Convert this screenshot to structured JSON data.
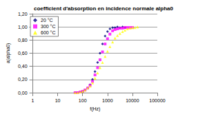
{
  "chart_data": {
    "type": "scatter",
    "title": "coefficient d'absorption en incidence normale alpha0",
    "x_label": "f(Hz)",
    "y_label": "a(alpha0)",
    "x": [
      50,
      63,
      80,
      100,
      125,
      160,
      200,
      250,
      315,
      400,
      500,
      630,
      800,
      1000,
      1250,
      1600,
      2000,
      2500,
      3150,
      4000,
      5000,
      6300,
      8000,
      10000,
      12500,
      16000
    ],
    "series": [
      {
        "name": "20 °C",
        "color": "#000080",
        "marker": "diamond",
        "values": [
          0.0,
          0.0,
          0.01,
          0.02,
          0.04,
          0.07,
          0.12,
          0.2,
          0.32,
          0.46,
          0.6,
          0.74,
          0.86,
          0.93,
          0.97,
          0.99,
          0.99,
          1.0,
          0.99,
          1.0,
          0.99,
          null,
          null,
          null,
          null,
          null
        ]
      },
      {
        "name": "300 °C",
        "color": "#ff00ff",
        "marker": "square",
        "values": [
          0.0,
          0.0,
          0.01,
          0.02,
          0.04,
          0.07,
          0.11,
          0.17,
          0.27,
          0.38,
          0.5,
          0.62,
          0.74,
          0.82,
          0.89,
          0.94,
          0.96,
          0.97,
          0.98,
          0.98,
          0.99,
          0.99,
          0.99,
          0.99,
          null,
          null
        ]
      },
      {
        "name": "600 °C",
        "color": "#ffff00",
        "marker": "triangle",
        "values": [
          0.0,
          0.0,
          0.01,
          0.02,
          0.04,
          0.07,
          0.1,
          0.15,
          0.22,
          0.3,
          0.38,
          0.46,
          0.55,
          0.63,
          0.7,
          0.77,
          0.83,
          0.87,
          0.9,
          0.93,
          0.95,
          0.97,
          0.98,
          0.99,
          0.99,
          1.0
        ]
      }
    ],
    "xlim": [
      1,
      100000
    ],
    "xticks": [
      1,
      10,
      100,
      1000,
      10000,
      100000
    ],
    "ylim": [
      0,
      1.2
    ],
    "yticks": [
      {
        "value": 0,
        "label": "0,00"
      },
      {
        "value": 0.2,
        "label": "0,20"
      },
      {
        "value": 0.4,
        "label": "0,40"
      },
      {
        "value": 0.6,
        "label": "0,60"
      },
      {
        "value": 0.8,
        "label": "0,80"
      },
      {
        "value": 1.0,
        "label": "1,00"
      },
      {
        "value": 1.2,
        "label": "1,20"
      }
    ],
    "log": "x",
    "grid": true,
    "legend": "upper left"
  }
}
